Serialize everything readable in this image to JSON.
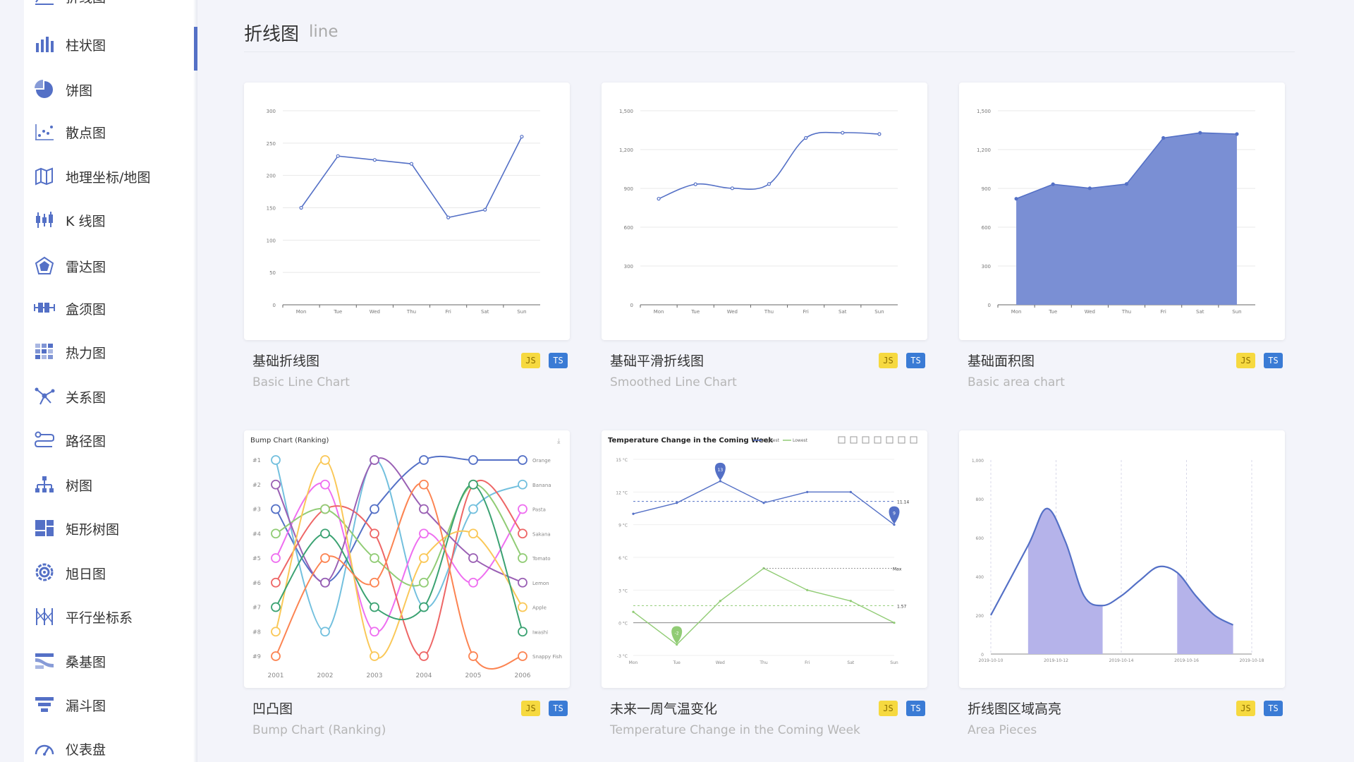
{
  "sidebar": {
    "items": [
      {
        "label": "折线图",
        "icon": "line-chart-icon"
      },
      {
        "label": "柱状图",
        "icon": "bar-chart-icon",
        "active": true
      },
      {
        "label": "饼图",
        "icon": "pie-chart-icon"
      },
      {
        "label": "散点图",
        "icon": "scatter-chart-icon"
      },
      {
        "label": "地理坐标/地图",
        "icon": "map-icon"
      },
      {
        "label": "K 线图",
        "icon": "candlestick-icon"
      },
      {
        "label": "雷达图",
        "icon": "radar-icon"
      },
      {
        "label": "盒须图",
        "icon": "boxplot-icon"
      },
      {
        "label": "热力图",
        "icon": "heatmap-icon"
      },
      {
        "label": "关系图",
        "icon": "graph-icon"
      },
      {
        "label": "路径图",
        "icon": "lines-icon"
      },
      {
        "label": "树图",
        "icon": "tree-icon"
      },
      {
        "label": "矩形树图",
        "icon": "treemap-icon"
      },
      {
        "label": "旭日图",
        "icon": "sunburst-icon"
      },
      {
        "label": "平行坐标系",
        "icon": "parallel-icon"
      },
      {
        "label": "桑基图",
        "icon": "sankey-icon"
      },
      {
        "label": "漏斗图",
        "icon": "funnel-icon"
      },
      {
        "label": "仪表盘",
        "icon": "gauge-icon"
      }
    ]
  },
  "header": {
    "title": "折线图",
    "subtitle": "line"
  },
  "colors": {
    "accent": "#5470c6",
    "green": "#91cc75",
    "area_fill": "#7a8fd4",
    "piece_fill": "#b5b3ea"
  },
  "tags": {
    "js": "JS",
    "ts": "TS"
  },
  "cards": [
    {
      "title": "基础折线图",
      "subtitle": "Basic Line Chart"
    },
    {
      "title": "基础平滑折线图",
      "subtitle": "Smoothed Line Chart"
    },
    {
      "title": "基础面积图",
      "subtitle": "Basic area chart"
    },
    {
      "title": "凹凸图",
      "subtitle": "Bump Chart (Ranking)"
    },
    {
      "title": "未来一周气温变化",
      "subtitle": "Temperature Change in the Coming Week"
    },
    {
      "title": "折线图区域高亮",
      "subtitle": "Area Pieces"
    }
  ],
  "chart_data": [
    {
      "type": "line",
      "categories": [
        "Mon",
        "Tue",
        "Wed",
        "Thu",
        "Fri",
        "Sat",
        "Sun"
      ],
      "yticks": [
        "300",
        "250",
        "200",
        "150",
        "100",
        "50",
        "0"
      ],
      "values": [
        150,
        230,
        224,
        218,
        135,
        147,
        260
      ],
      "ylim": [
        0,
        300
      ]
    },
    {
      "type": "line",
      "smooth": true,
      "categories": [
        "Mon",
        "Tue",
        "Wed",
        "Thu",
        "Fri",
        "Sat",
        "Sun"
      ],
      "yticks": [
        "1,500",
        "1,200",
        "900",
        "600",
        "300",
        "0"
      ],
      "values": [
        820,
        932,
        901,
        934,
        1290,
        1330,
        1320
      ],
      "ylim": [
        0,
        1500
      ]
    },
    {
      "type": "area",
      "categories": [
        "Mon",
        "Tue",
        "Wed",
        "Thu",
        "Fri",
        "Sat",
        "Sun"
      ],
      "yticks": [
        "1,500",
        "1,200",
        "900",
        "600",
        "300",
        "0"
      ],
      "values": [
        820,
        932,
        901,
        934,
        1290,
        1330,
        1320
      ],
      "ylim": [
        0,
        1500
      ]
    },
    {
      "type": "line",
      "title": "Bump Chart (Ranking)",
      "x": [
        "2001",
        "2002",
        "2003",
        "2004",
        "2005",
        "2006"
      ],
      "yticks": [
        "#1",
        "#2",
        "#3",
        "#4",
        "#5",
        "#6",
        "#7",
        "#8",
        "#9"
      ],
      "series": [
        {
          "name": "Orange",
          "color": "#5470c6",
          "values": [
            3,
            6,
            3,
            1,
            1,
            1
          ]
        },
        {
          "name": "Banana",
          "color": "#73c0de",
          "values": [
            1,
            8,
            1,
            7,
            3,
            2
          ]
        },
        {
          "name": "Pasta",
          "color": "#ee6ef0",
          "values": [
            5,
            2,
            8,
            4,
            6,
            3
          ]
        },
        {
          "name": "Sakana",
          "color": "#ee6666",
          "values": [
            6,
            3,
            4,
            9,
            2,
            4
          ]
        },
        {
          "name": "Tomato",
          "color": "#91cc75",
          "values": [
            4,
            3,
            5,
            6,
            2,
            5
          ]
        },
        {
          "name": "Lemon",
          "color": "#9a60b4",
          "values": [
            2,
            6,
            1,
            3,
            5,
            6
          ]
        },
        {
          "name": "Apple",
          "color": "#fac858",
          "values": [
            8,
            1,
            9,
            5,
            4,
            7
          ]
        },
        {
          "name": "Iwashi",
          "color": "#3ba272",
          "values": [
            7,
            4,
            7,
            7,
            2,
            8
          ]
        },
        {
          "name": "Snappy Fish",
          "color": "#fc8452",
          "values": [
            9,
            5,
            6,
            2,
            9,
            9
          ]
        }
      ]
    },
    {
      "type": "line",
      "title": "Temperature Change in the Coming Week",
      "legend": [
        "Highest",
        "Lowest"
      ],
      "categories": [
        "Mon",
        "Tue",
        "Wed",
        "Thu",
        "Fri",
        "Sat",
        "Sun"
      ],
      "yticks": [
        "15 °C",
        "12 °C",
        "9 °C",
        "6 °C",
        "3 °C",
        "0 °C",
        "-3 °C"
      ],
      "ylim": [
        -3,
        15
      ],
      "series": [
        {
          "name": "Highest",
          "color": "#5470c6",
          "values": [
            10,
            11,
            13,
            11,
            12,
            12,
            9
          ],
          "max_label": "13",
          "min_label": "9",
          "avg_label": "11.14"
        },
        {
          "name": "Lowest",
          "color": "#91cc75",
          "values": [
            1,
            -2,
            2,
            5,
            3,
            2,
            0
          ],
          "min_label": "-2",
          "avg_label": "1.57",
          "max_text": "Max"
        }
      ]
    },
    {
      "type": "area",
      "x": [
        "2019-10-10",
        "2019-10-12",
        "2019-10-14",
        "2019-10-16",
        "2019-10-18"
      ],
      "yticks": [
        "1,000",
        "800",
        "600",
        "400",
        "200",
        "0"
      ],
      "ylim": [
        0,
        1000
      ],
      "points": [
        [
          0,
          200
        ],
        [
          1,
          560
        ],
        [
          1.5,
          750
        ],
        [
          2,
          580
        ],
        [
          2.5,
          300
        ],
        [
          3,
          250
        ],
        [
          3.5,
          300
        ],
        [
          4,
          380
        ],
        [
          4.5,
          450
        ],
        [
          5,
          420
        ],
        [
          5.5,
          300
        ],
        [
          6,
          200
        ],
        [
          6.5,
          150
        ]
      ],
      "pieces": [
        [
          1,
          3
        ],
        [
          5,
          7
        ]
      ]
    }
  ]
}
